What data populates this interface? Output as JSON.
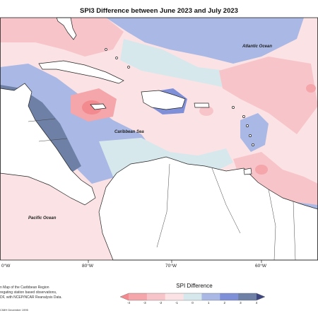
{
  "title": "SPI3 Difference between June 2023 and July 2023",
  "labels": {
    "atlantic": "Atlantic Ocean",
    "caribbean": "Caribbean Sea",
    "pacific": "Pacific Ocean"
  },
  "longitudes": [
    "80°W",
    "70°W",
    "60°W"
  ],
  "left_edge_label": "0°W",
  "notes": [
    "n Map of the Caribbean Region",
    "regating station based observations,",
    "DF, with NCEP/NCAR Reanalysis Data.",
    "CIMH December 1995"
  ],
  "legend": {
    "title": "SPI Difference",
    "ticks": [
      "-4",
      "-3",
      "-2",
      "-1",
      "0",
      "1",
      "2",
      "3",
      "4"
    ],
    "colors": [
      "#f28a8f",
      "#f4a6ab",
      "#f7c5c9",
      "#fbe3e5",
      "#d7e8ec",
      "#a9b8e4",
      "#7f8fd8",
      "#6e80a6",
      "#3e467f"
    ]
  }
}
